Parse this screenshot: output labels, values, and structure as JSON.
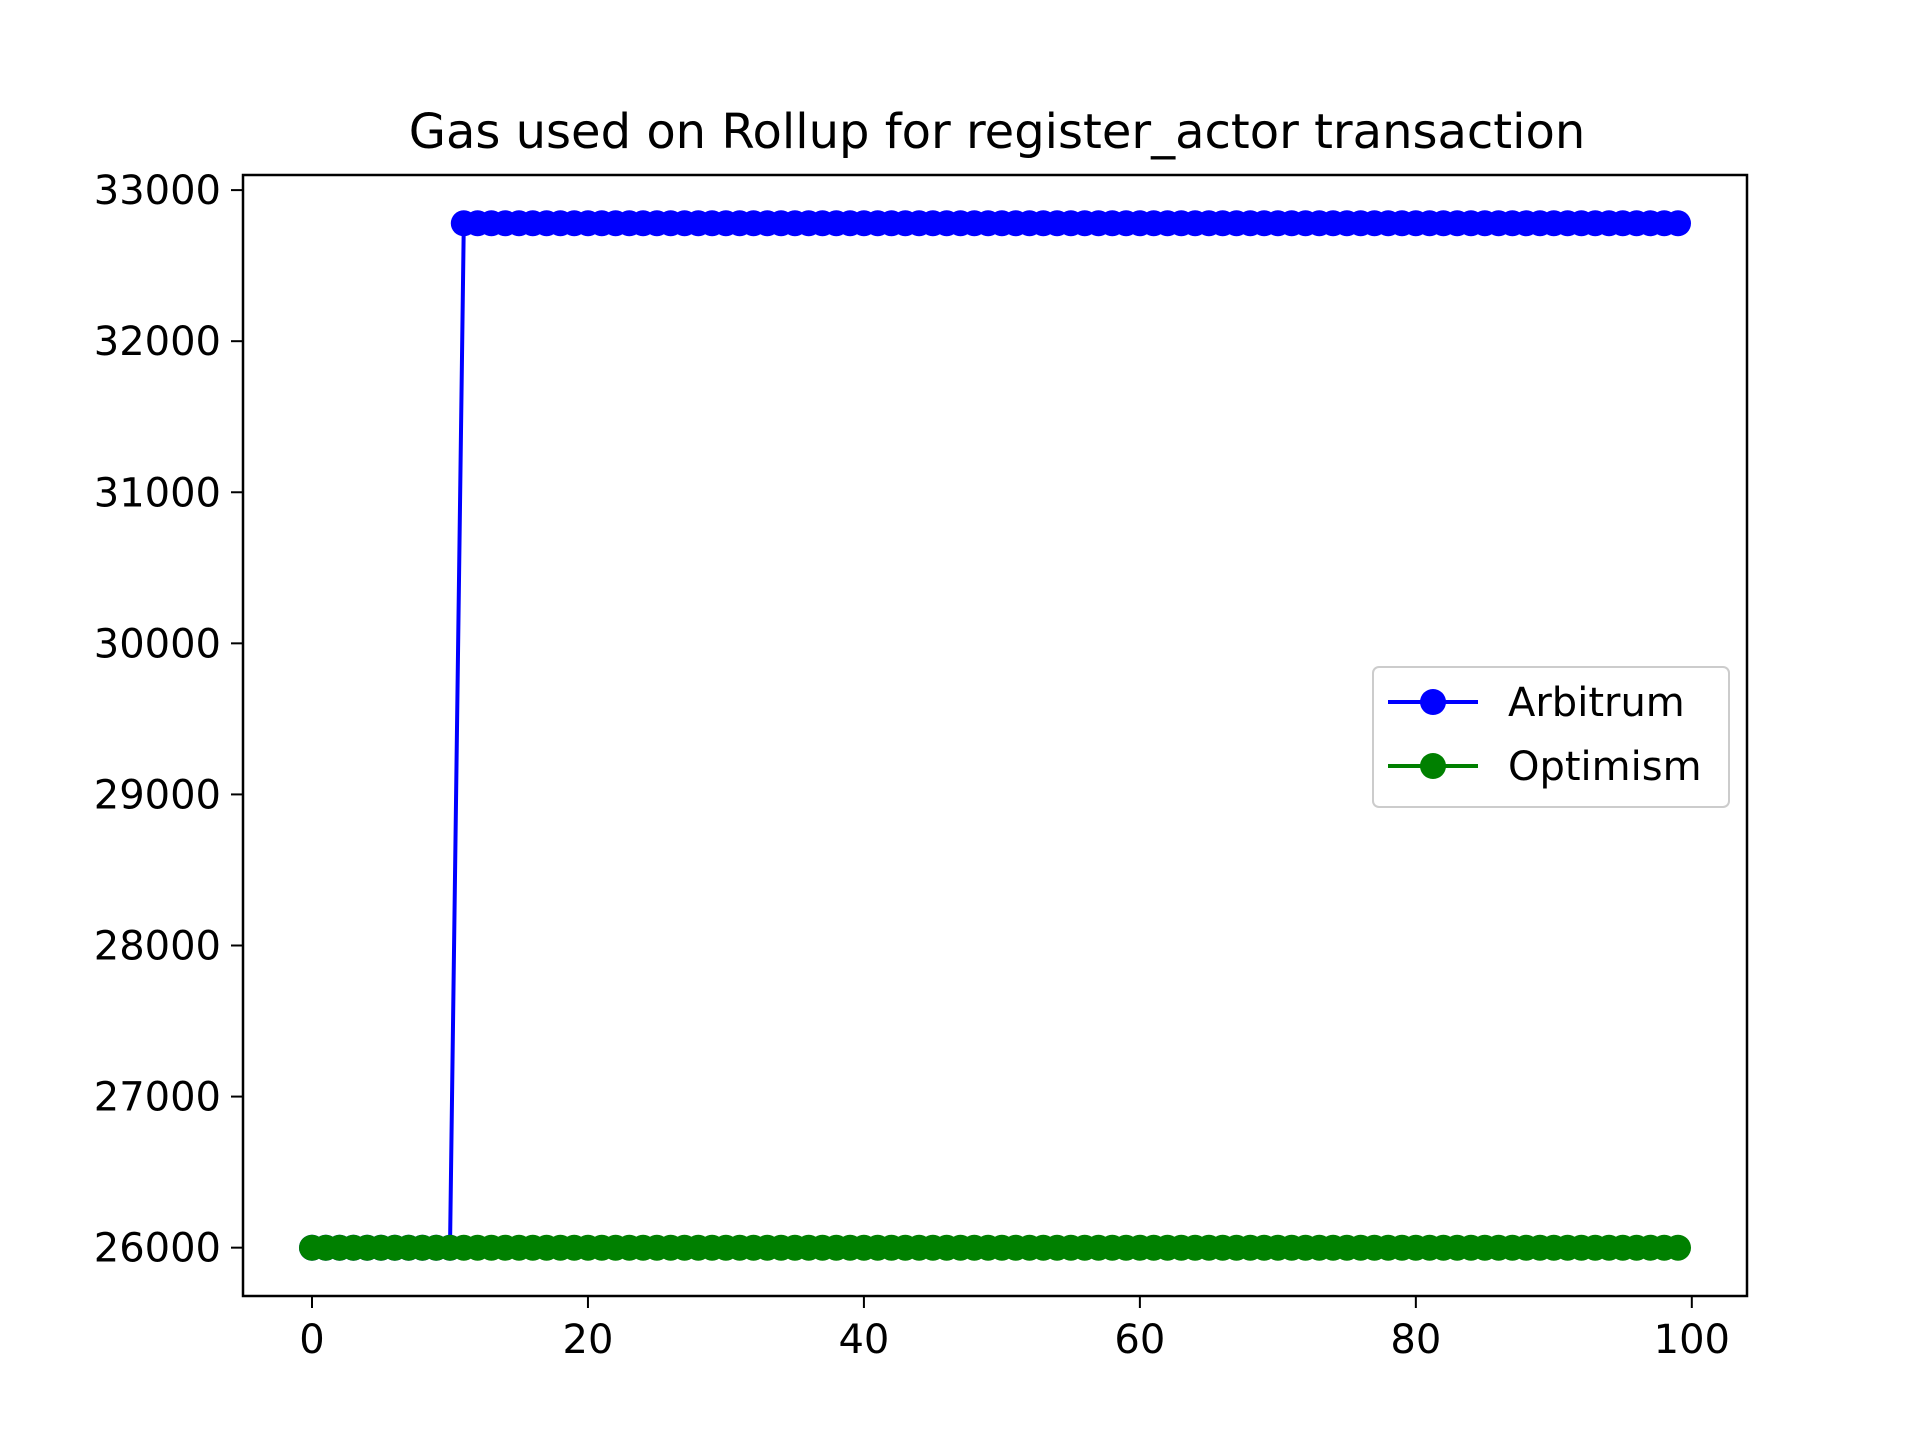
{
  "chart_data": {
    "type": "line",
    "title": "Gas used on Rollup for register_actor transaction",
    "xlabel": "",
    "ylabel": "",
    "xlim": [
      -5,
      104
    ],
    "ylim": [
      25680,
      33100
    ],
    "x_ticks": [
      0,
      20,
      40,
      60,
      80,
      100
    ],
    "y_ticks": [
      26000,
      27000,
      28000,
      29000,
      30000,
      31000,
      32000,
      33000
    ],
    "grid": false,
    "legend_position": "center-right",
    "series": [
      {
        "name": "Arbitrum",
        "color": "#0000ff",
        "marker": "circle",
        "segments": [
          {
            "x_start": 0,
            "x_end": 10,
            "y": 26000
          },
          {
            "x_start": 11,
            "x_end": 99,
            "y": 32780
          }
        ]
      },
      {
        "name": "Optimism",
        "color": "#008000",
        "marker": "circle",
        "segments": [
          {
            "x_start": 0,
            "x_end": 99,
            "y": 26000
          }
        ]
      }
    ]
  }
}
